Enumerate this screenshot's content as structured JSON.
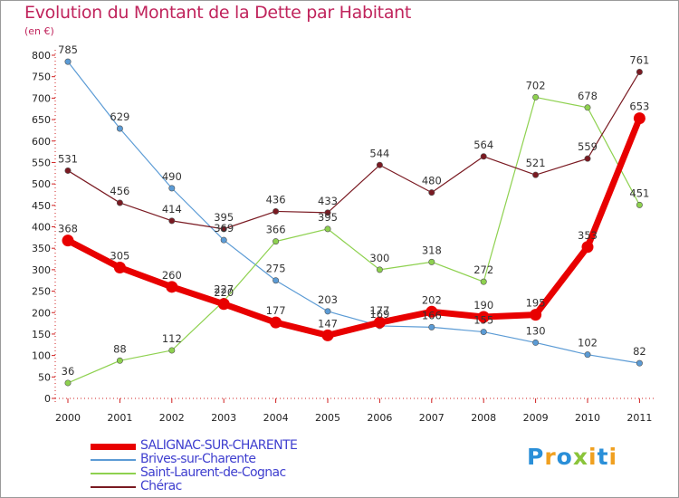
{
  "header": {
    "title": "Evolution du Montant de la Dette par Habitant",
    "subtitle": "(en €)"
  },
  "logo": {
    "letters": [
      "P",
      "r",
      "o",
      "x",
      "i",
      "t",
      "i"
    ],
    "colors": [
      "#2a8fd8",
      "#f0a020",
      "#2a8fd8",
      "#8ac43a",
      "#f0a020",
      "#2a8fd8",
      "#f0a020"
    ]
  },
  "chart_data": {
    "type": "line",
    "title": "Evolution du Montant de la Dette par Habitant",
    "ylabel": "(en €)",
    "x": [
      "2000",
      "2001",
      "2002",
      "2003",
      "2004",
      "2005",
      "2006",
      "2007",
      "2008",
      "2009",
      "2010",
      "2011"
    ],
    "ylim": [
      0,
      800
    ],
    "yticks": [
      "0",
      "50",
      "100",
      "150",
      "200",
      "250",
      "300",
      "350",
      "400",
      "450",
      "500",
      "550",
      "600",
      "650",
      "700",
      "750",
      "800"
    ],
    "grid": false,
    "legend": "bottom-left",
    "series": [
      {
        "name": "SALIGNAC-SUR-CHARENTE",
        "values": [
          368,
          305,
          260,
          220,
          177,
          147,
          177,
          202,
          190,
          195,
          353,
          653
        ],
        "labels": [
          "368",
          "305",
          "260",
          "220",
          "177",
          "147",
          "177",
          "202",
          "190",
          "195",
          "353",
          "653"
        ],
        "color": "#e80000"
      },
      {
        "name": "Brives-sur-Charente",
        "values": [
          785,
          629,
          490,
          369,
          275,
          203,
          169,
          166,
          155,
          130,
          102,
          82
        ],
        "labels": [
          "785",
          "629",
          "490",
          "369",
          "275",
          "203",
          "169",
          "166",
          "155",
          "130",
          "102",
          "82"
        ],
        "color": "#5b9bd5"
      },
      {
        "name": "Saint-Laurent-de-Cognac",
        "values": [
          36,
          88,
          112,
          227,
          366,
          395,
          300,
          318,
          272,
          702,
          678,
          451
        ],
        "labels": [
          "36",
          "88",
          "112",
          "227",
          "366",
          "395",
          "300",
          "318",
          "272",
          "702",
          "678",
          "451"
        ],
        "color": "#8ed14f"
      },
      {
        "name": "Chérac",
        "values": [
          531,
          456,
          414,
          395,
          436,
          433,
          544,
          480,
          564,
          521,
          559,
          761
        ],
        "labels": [
          "531",
          "456",
          "414",
          "395",
          "436",
          "433",
          "544",
          "480",
          "564",
          "521",
          "559",
          "761"
        ],
        "color": "#7a1a22"
      }
    ]
  }
}
